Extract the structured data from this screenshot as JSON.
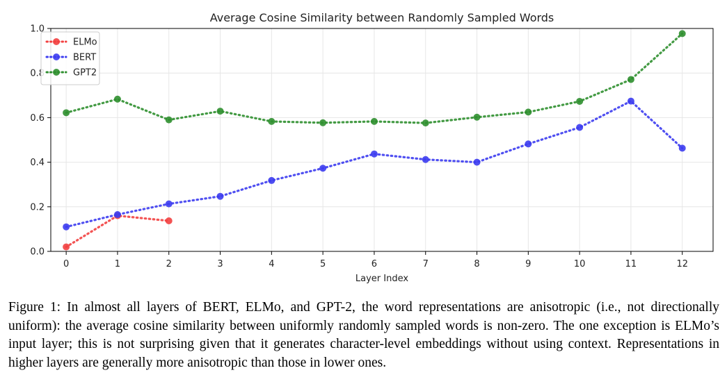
{
  "chart_data": {
    "type": "line",
    "title": "Average Cosine Similarity between Randomly Sampled Words",
    "xlabel": "Layer Index",
    "ylabel": "",
    "xlim": [
      -0.3,
      12.6
    ],
    "ylim": [
      0.0,
      1.0
    ],
    "x_ticks": [
      0,
      1,
      2,
      3,
      4,
      5,
      6,
      7,
      8,
      9,
      10,
      11,
      12
    ],
    "y_ticks": [
      0.0,
      0.2,
      0.4,
      0.6,
      0.8,
      1.0
    ],
    "y_tick_labels": [
      "0.0",
      "0.2",
      "0.4",
      "0.6",
      "0.8",
      "1.0"
    ],
    "grid": true,
    "legend_position": "top-left",
    "line_style": "dotted",
    "series": [
      {
        "name": "ELMo",
        "color": "#f24040",
        "x": [
          0,
          1,
          2
        ],
        "y": [
          0.02,
          0.16,
          0.137
        ]
      },
      {
        "name": "BERT",
        "color": "#3c3cf0",
        "x": [
          0,
          1,
          2,
          3,
          4,
          5,
          6,
          7,
          8,
          9,
          10,
          11,
          12
        ],
        "y": [
          0.11,
          0.165,
          0.213,
          0.247,
          0.318,
          0.373,
          0.437,
          0.412,
          0.4,
          0.482,
          0.556,
          0.674,
          0.463
        ]
      },
      {
        "name": "GPT2",
        "color": "#2f8f2f",
        "x": [
          0,
          1,
          2,
          3,
          4,
          5,
          6,
          7,
          8,
          9,
          10,
          11,
          12
        ],
        "y": [
          0.622,
          0.683,
          0.59,
          0.629,
          0.583,
          0.577,
          0.583,
          0.576,
          0.602,
          0.625,
          0.673,
          0.771,
          0.977
        ]
      }
    ]
  },
  "caption": "Figure 1: In almost all layers of BERT, ELMo, and GPT-2, the word representations are anisotropic (i.e., not directionally uniform): the average cosine similarity between uniformly randomly sampled words is non-zero. The one exception is ELMo’s input layer; this is not surprising given that it generates character-level embeddings without using context. Representations in higher layers are generally more anisotropic than those in lower ones."
}
